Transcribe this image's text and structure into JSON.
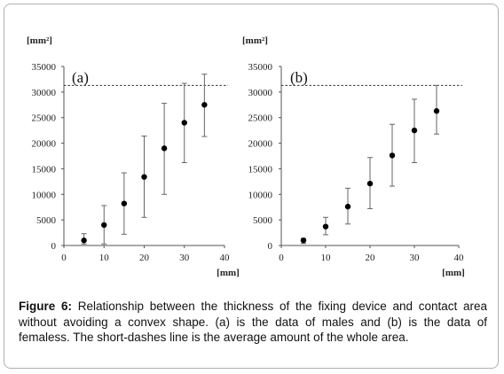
{
  "chart_data": [
    {
      "type": "scatter",
      "panel_label": "(a)",
      "y_unit": "[mm²]",
      "x_unit": "[mm]",
      "xlim": [
        0,
        40
      ],
      "ylim": [
        0,
        35000
      ],
      "x_ticks": [
        "0",
        "10",
        "20",
        "30",
        "40"
      ],
      "y_ticks": [
        "0",
        "5000",
        "10000",
        "15000",
        "20000",
        "25000",
        "30000",
        "35000"
      ],
      "x": [
        5,
        10,
        15,
        20,
        25,
        30,
        35
      ],
      "values": [
        1000,
        4000,
        8200,
        13400,
        19000,
        24000,
        27500
      ],
      "error_low": [
        300,
        300,
        2200,
        5500,
        10000,
        16200,
        21300
      ],
      "error_high": [
        2300,
        7800,
        14200,
        21400,
        27800,
        31700,
        33500
      ],
      "reference_line": 31300,
      "grid": false,
      "legend": "none"
    },
    {
      "type": "scatter",
      "panel_label": "(b)",
      "y_unit": "[mm²]",
      "x_unit": "[mm]",
      "xlim": [
        0,
        40
      ],
      "ylim": [
        0,
        35000
      ],
      "x_ticks": [
        "0",
        "10",
        "20",
        "30",
        "40"
      ],
      "y_ticks": [
        "0",
        "5000",
        "10000",
        "15000",
        "20000",
        "25000",
        "30000",
        "35000"
      ],
      "x": [
        5,
        10,
        15,
        20,
        25,
        30,
        35
      ],
      "values": [
        1000,
        3700,
        7600,
        12100,
        17600,
        22500,
        26300
      ],
      "error_low": [
        400,
        2100,
        4200,
        7200,
        11600,
        16200,
        21800
      ],
      "error_high": [
        1400,
        5500,
        11200,
        17200,
        23700,
        28600,
        31300
      ],
      "reference_line": 31300,
      "grid": false,
      "legend": "none"
    }
  ],
  "caption": {
    "label": "Figure 6:",
    "text": " Relationship between the thickness of the fixing device and contact area without avoiding a convex shape. (a) is the data of males and (b) is the data of femaless. The short-dashes line is the average amount of the whole area."
  },
  "colors": {
    "axis": "#555555",
    "marker": "#000000",
    "error_bar": "#666666",
    "reference_line": "#333333",
    "frame_border": "#b0b0b0"
  }
}
